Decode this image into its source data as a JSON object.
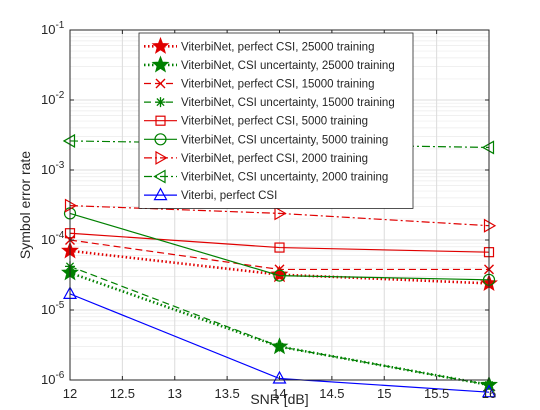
{
  "chart_data": {
    "type": "line",
    "xlabel": "SNR [dB]",
    "ylabel": "Symbol error rate",
    "xlim": [
      12,
      16
    ],
    "ylim": [
      1e-06,
      0.1
    ],
    "yscale": "log",
    "grid": true,
    "legend_position": "top-center",
    "x_ticks": [
      "12",
      "12.5",
      "13",
      "13.5",
      "14",
      "14.5",
      "15",
      "15.5",
      "16"
    ],
    "y_ticks": [
      {
        "base": "10",
        "exp": "-1"
      },
      {
        "base": "10",
        "exp": "-2"
      },
      {
        "base": "10",
        "exp": "-3"
      },
      {
        "base": "10",
        "exp": "-4"
      },
      {
        "base": "10",
        "exp": "-5"
      },
      {
        "base": "10",
        "exp": "-6"
      }
    ],
    "x": [
      12,
      14,
      16
    ],
    "series": [
      {
        "name": "ViterbiNet, perfect CSI, 25000 training",
        "color": "#e00000",
        "dash": "dotted",
        "marker": "star-filled",
        "values": [
          7e-05,
          3.2e-05,
          2.4e-05
        ]
      },
      {
        "name": "ViterbiNet, CSI uncertainty, 25000 training",
        "color": "#008000",
        "dash": "dotted",
        "marker": "star-filled",
        "values": [
          3.4e-05,
          3e-06,
          8.5e-07
        ]
      },
      {
        "name": "ViterbiNet, perfect CSI, 15000 training",
        "color": "#e00000",
        "dash": "dashed",
        "marker": "x",
        "values": [
          0.0001,
          3.8e-05,
          3.8e-05
        ]
      },
      {
        "name": "ViterbiNet, CSI uncertainty, 15000 training",
        "color": "#008000",
        "dash": "dashed",
        "marker": "asterisk",
        "values": [
          4.2e-05,
          3e-06,
          8.5e-07
        ]
      },
      {
        "name": "ViterbiNet, perfect CSI, 5000 training",
        "color": "#e00000",
        "dash": "solid",
        "marker": "square",
        "values": [
          0.000125,
          7.8e-05,
          6.7e-05
        ]
      },
      {
        "name": "ViterbiNet, CSI uncertainty, 5000 training",
        "color": "#008000",
        "dash": "solid",
        "marker": "circle",
        "values": [
          0.00024,
          3.1e-05,
          2.7e-05
        ]
      },
      {
        "name": "ViterbiNet, perfect CSI, 2000 training",
        "color": "#e00000",
        "dash": "dashdot",
        "marker": "triangle-right",
        "values": [
          0.00031,
          0.00024,
          0.00016
        ]
      },
      {
        "name": "ViterbiNet, CSI uncertainty, 2000 training",
        "color": "#008000",
        "dash": "dashdot",
        "marker": "triangle-left",
        "values": [
          0.0026,
          null,
          0.0021
        ]
      },
      {
        "name": "Viterbi, perfect CSI",
        "color": "#0000ff",
        "dash": "solid",
        "marker": "triangle-up",
        "values": [
          1.7e-05,
          1.05e-06,
          6.7e-07
        ]
      }
    ]
  }
}
